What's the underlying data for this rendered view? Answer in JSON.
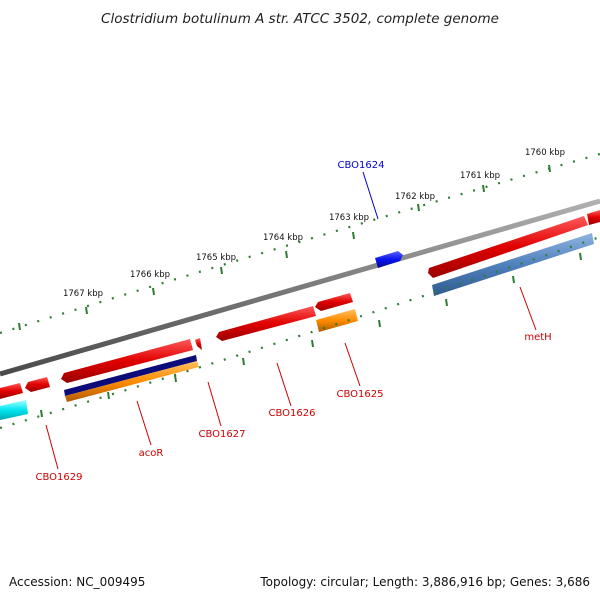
{
  "title": "Clostridium botulinum A str. ATCC 3502, complete genome",
  "footer": {
    "accession": "Accession: NC_009495",
    "summary": "Topology: circular; Length: 3,886,916 bp; Genes: 3,686"
  },
  "scale": {
    "labels": [
      "1760 kbp",
      "1761 kbp",
      "1762 kbp",
      "1763 kbp",
      "1764 kbp",
      "1765 kbp",
      "1766 kbp",
      "1767 kbp"
    ]
  },
  "genes": {
    "labels": [
      "CBO1624",
      "metH",
      "CBO1625",
      "CBO1626",
      "CBO1627",
      "acoR",
      "CBO1629"
    ]
  },
  "colors": {
    "backbone": "#7a7a7a",
    "tick": "#2e7d32",
    "gene_red": "#e00000",
    "gene_blue": "#0a14ee",
    "track_orange": "#ff8c00",
    "track_steelblue": "#4f81bd",
    "track_navy": "#0b0b7a",
    "track_cyan": "#00e5f0",
    "label_red": "#cc0000",
    "label_blue": "#0000cc"
  }
}
